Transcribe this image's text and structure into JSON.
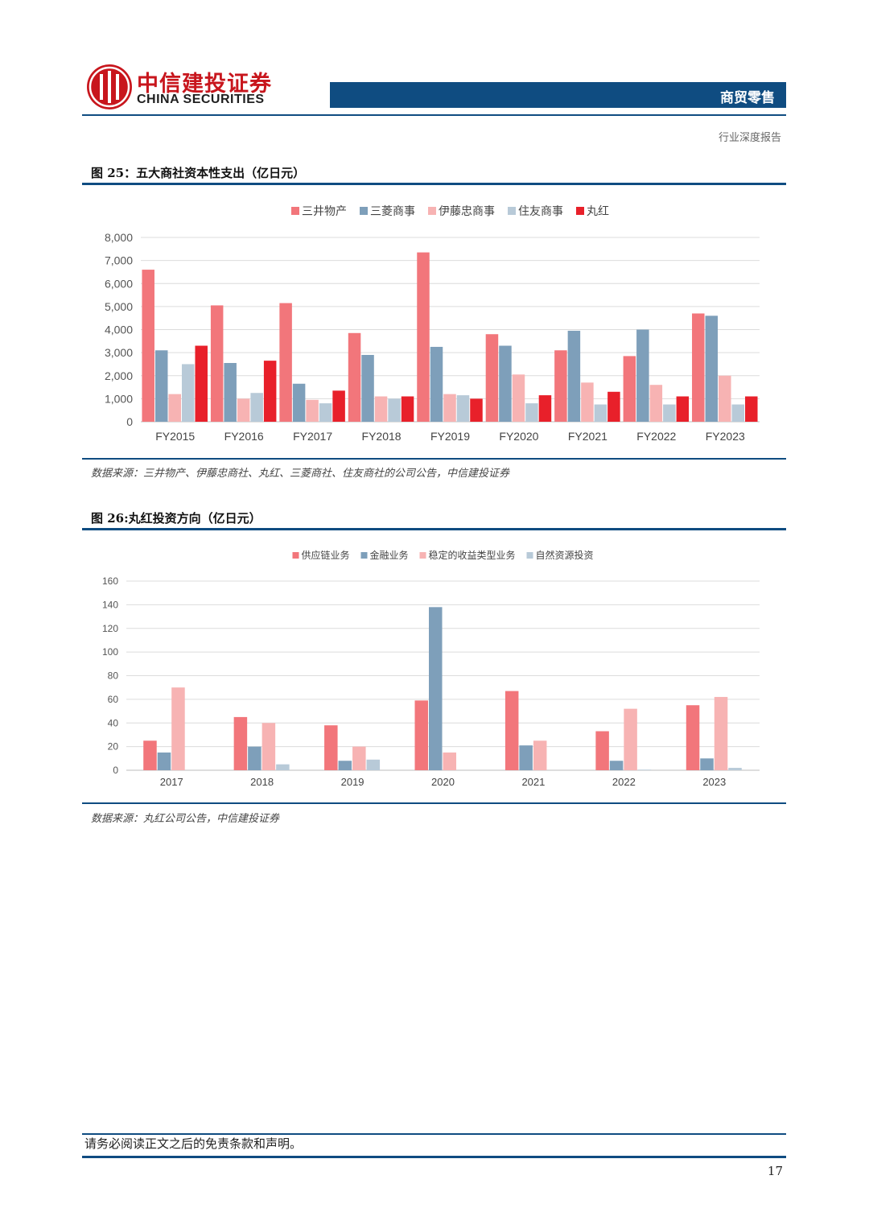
{
  "header": {
    "logo_cn": "中信建投证券",
    "logo_en": "CHINA SECURITIES",
    "sector": "商贸零售",
    "report_type": "行业深度报告"
  },
  "figures": [
    {
      "title": "图 25：五大商社资本性支出（亿日元）",
      "source": "数据来源：三井物产、伊藤忠商社、丸红、三菱商社、住友商社的公司公告，中信建投证券"
    },
    {
      "title": "图 26:丸红投资方向（亿日元）",
      "source": "数据来源：丸红公司公告，中信建投证券"
    }
  ],
  "chart_data": [
    {
      "type": "bar",
      "categories": [
        "FY2015",
        "FY2016",
        "FY2017",
        "FY2018",
        "FY2019",
        "FY2020",
        "FY2021",
        "FY2022",
        "FY2023"
      ],
      "series": [
        {
          "name": "三井物产",
          "color": "#f2767b",
          "values": [
            6600,
            5050,
            5150,
            3850,
            7350,
            3800,
            3100,
            2850,
            4700
          ]
        },
        {
          "name": "三菱商事",
          "color": "#7e9fba",
          "values": [
            3100,
            2550,
            1650,
            2900,
            3250,
            3300,
            3950,
            4000,
            4600
          ]
        },
        {
          "name": "伊藤忠商事",
          "color": "#f7b3b3",
          "values": [
            1200,
            1000,
            950,
            1100,
            1200,
            2050,
            1700,
            1600,
            2000
          ]
        },
        {
          "name": "住友商事",
          "color": "#b8cad8",
          "values": [
            2500,
            1250,
            800,
            1000,
            1150,
            800,
            750,
            750,
            750
          ]
        },
        {
          "name": "丸红",
          "color": "#e8202a",
          "values": [
            3300,
            2650,
            1350,
            1100,
            1000,
            1150,
            1300,
            1100,
            1100
          ]
        }
      ],
      "yticks": [
        "8,000",
        "7,000",
        "6,000",
        "5,000",
        "4,000",
        "3,000",
        "2,000",
        "1,000",
        "0"
      ],
      "ylim": [
        0,
        8000
      ],
      "legend_position": "top-center"
    },
    {
      "type": "bar",
      "categories": [
        "2017",
        "2018",
        "2019",
        "2020",
        "2021",
        "2022",
        "2023"
      ],
      "series": [
        {
          "name": "供应链业务",
          "color": "#f2767b",
          "values": [
            25,
            45,
            38,
            59,
            67,
            33,
            55
          ]
        },
        {
          "name": "金融业务",
          "color": "#7e9fba",
          "values": [
            15,
            20,
            8,
            138,
            21,
            8,
            10
          ]
        },
        {
          "name": "稳定的收益类型业务",
          "color": "#f7b3b3",
          "values": [
            70,
            40,
            20,
            15,
            25,
            52,
            62
          ]
        },
        {
          "name": "自然资源投资",
          "color": "#b8cad8",
          "values": [
            0,
            5,
            9,
            0,
            0,
            0.5,
            2
          ]
        }
      ],
      "yticks": [
        "160",
        "140",
        "120",
        "100",
        "80",
        "60",
        "40",
        "20",
        "0"
      ],
      "ylim": [
        0,
        160
      ],
      "legend_position": "top-center"
    }
  ],
  "footer": {
    "disclaimer": "请务必阅读正文之后的免责条款和声明。",
    "page": "17"
  }
}
